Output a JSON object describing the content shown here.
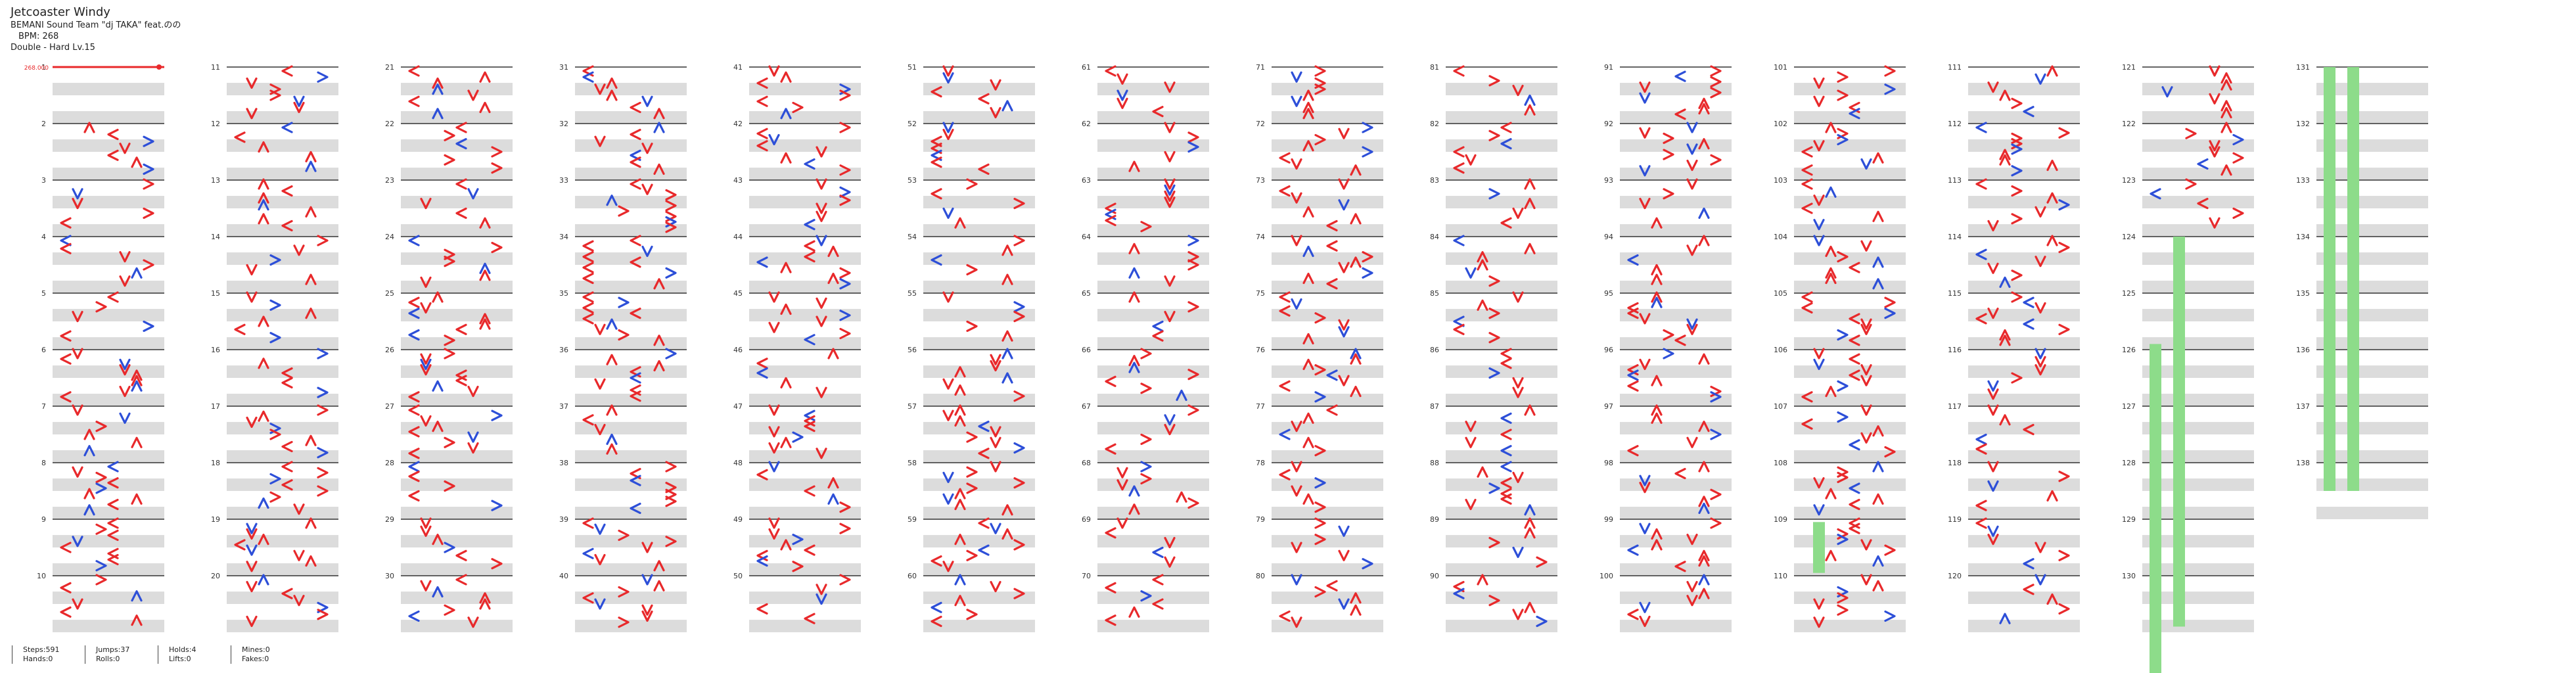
{
  "song": {
    "title": "Jetcoaster Windy",
    "artist": "BEMANI Sound Team \"dj TAKA\" feat.のの",
    "bpm": "BPM: 268",
    "difficulty": "Double - Hard Lv.15"
  },
  "bpm_marker": "268.000",
  "measure_count": 138,
  "stats": [
    [
      "Steps:591",
      "Hands:0"
    ],
    [
      "Jumps:37",
      "Rolls:0"
    ],
    [
      "Holds:4",
      "Lifts:0"
    ],
    [
      "Mines:0",
      "Fakes:0"
    ]
  ],
  "colors": {
    "red_arrow": "#e8292b",
    "blue_arrow": "#2d4fd8",
    "hold": "#8ddc8a",
    "band": "#dcdcdc",
    "line": "#333333"
  },
  "icons": [
    "left-arrow-icon",
    "right-arrow-icon",
    "up-arrow-icon",
    "down-arrow-icon",
    "hold-freeze-icon"
  ]
}
